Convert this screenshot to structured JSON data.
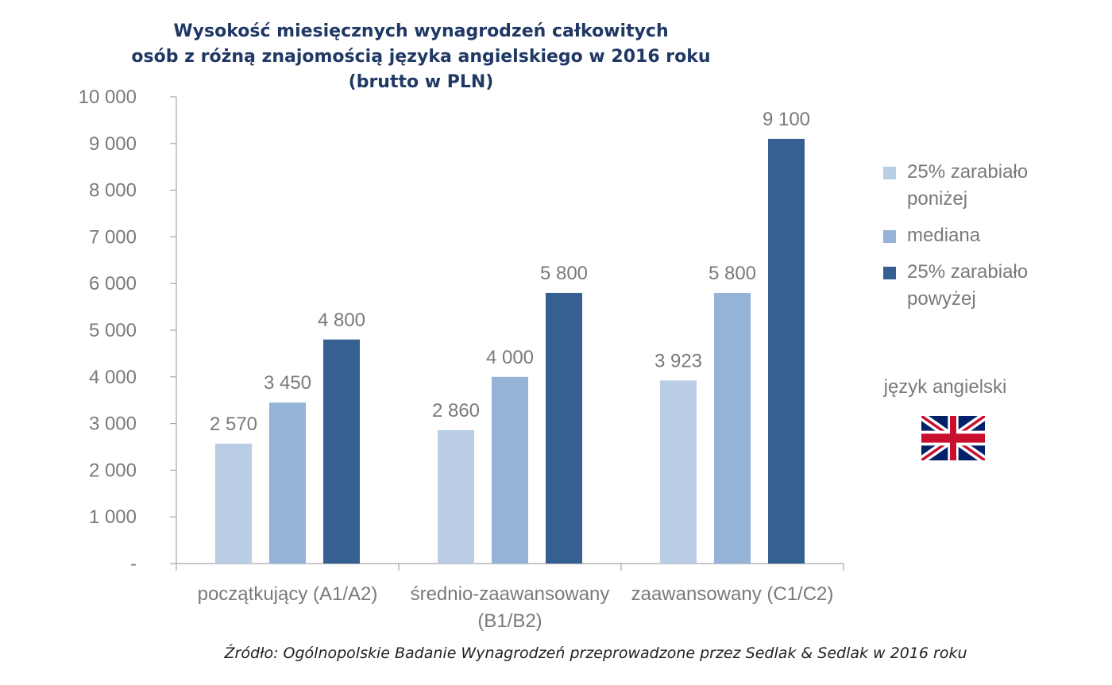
{
  "chart_data": {
    "type": "bar",
    "title": [
      "Wysokość miesięcznych wynagrodzeń całkowitych",
      "osób z różną znajomością języka angielskiego w 2016 roku (brutto w PLN)"
    ],
    "categories": [
      [
        "początkujący (A1/A2)"
      ],
      [
        "średnio-zaawansowany",
        "(B1/B2)"
      ],
      [
        "zaawansowany (C1/C2)"
      ]
    ],
    "series": [
      {
        "name": "25% zarabiało poniżej",
        "name_lines": [
          "25% zarabiało",
          "poniżej"
        ],
        "color": "#b9cde5",
        "values": [
          2570,
          2860,
          3923
        ],
        "labels": [
          "2 570",
          "2 860",
          "3 923"
        ]
      },
      {
        "name": "mediana",
        "name_lines": [
          "mediana"
        ],
        "color": "#95b3d7",
        "values": [
          3450,
          4000,
          5800
        ],
        "labels": [
          "3 450",
          "4 000",
          "5 800"
        ]
      },
      {
        "name": "25% zarabiało powyżej",
        "name_lines": [
          "25% zarabiało",
          "powyżej"
        ],
        "color": "#376092",
        "values": [
          4800,
          5800,
          9100
        ],
        "labels": [
          "4 800",
          "5 800",
          "9 100"
        ]
      }
    ],
    "ylim": [
      0,
      10000
    ],
    "yticks": [
      0,
      1000,
      2000,
      3000,
      4000,
      5000,
      6000,
      7000,
      8000,
      9000,
      10000
    ],
    "ytick_labels": [
      "-",
      "1 000",
      "2 000",
      "3 000",
      "4 000",
      "5 000",
      "6 000",
      "7 000",
      "8 000",
      "9 000",
      "10 000"
    ],
    "grid": false,
    "legend_position": "right"
  },
  "annotation": {
    "flag_caption": "język angielski",
    "flag_icon": "uk-flag-icon"
  },
  "source": "Źródło: Ogólnopolskie Badanie Wynagrodzeń przeprowadzone przez Sedlak & Sedlak w 2016 roku"
}
